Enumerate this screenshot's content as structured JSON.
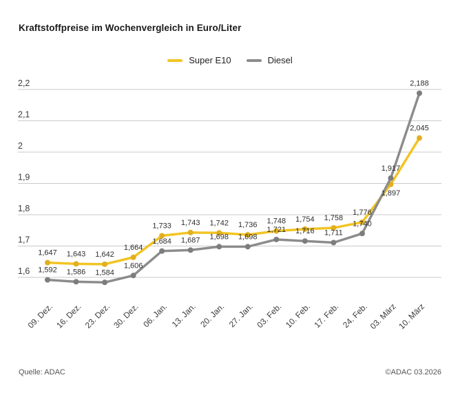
{
  "chart_data": {
    "type": "line",
    "title": "Kraftstoffpreise im Wochenvergleich in Euro/Liter",
    "categories": [
      "09. Dez.",
      "16. Dez.",
      "23. Dez.",
      "30. Dez.",
      "06. Jan.",
      "13. Jan.",
      "20. Jan.",
      "27. Jan.",
      "03. Feb.",
      "10. Feb.",
      "17. Feb.",
      "24. Feb.",
      "03. März",
      "10. März"
    ],
    "series": [
      {
        "name": "Super E10",
        "color": "#F2C424",
        "marker_color": "#E2AF1E",
        "values": [
          1.647,
          1.643,
          1.642,
          1.664,
          1.733,
          1.743,
          1.742,
          1.736,
          1.748,
          1.754,
          1.758,
          1.776,
          1.897,
          2.045
        ]
      },
      {
        "name": "Diesel",
        "color": "#8C8C8C",
        "marker_color": "#7D7D7D",
        "values": [
          1.592,
          1.586,
          1.584,
          1.606,
          1.684,
          1.687,
          1.698,
          1.698,
          1.721,
          1.716,
          1.711,
          1.74,
          1.917,
          2.188
        ]
      }
    ],
    "yticks": [
      1.6,
      1.7,
      1.8,
      1.9,
      2.0,
      2.1,
      2.2
    ],
    "ylim": [
      1.55,
      2.25
    ],
    "decimal_separator": ",",
    "grid": "horizontal",
    "gridline_color": "#C9C9C9",
    "axis_label_color": "#3C3C3C",
    "value_label_color": "#2D2D2D",
    "legend_position": "top-center"
  },
  "footer": {
    "source": "Quelle: ADAC",
    "copyright": "©ADAC 03.2026"
  }
}
